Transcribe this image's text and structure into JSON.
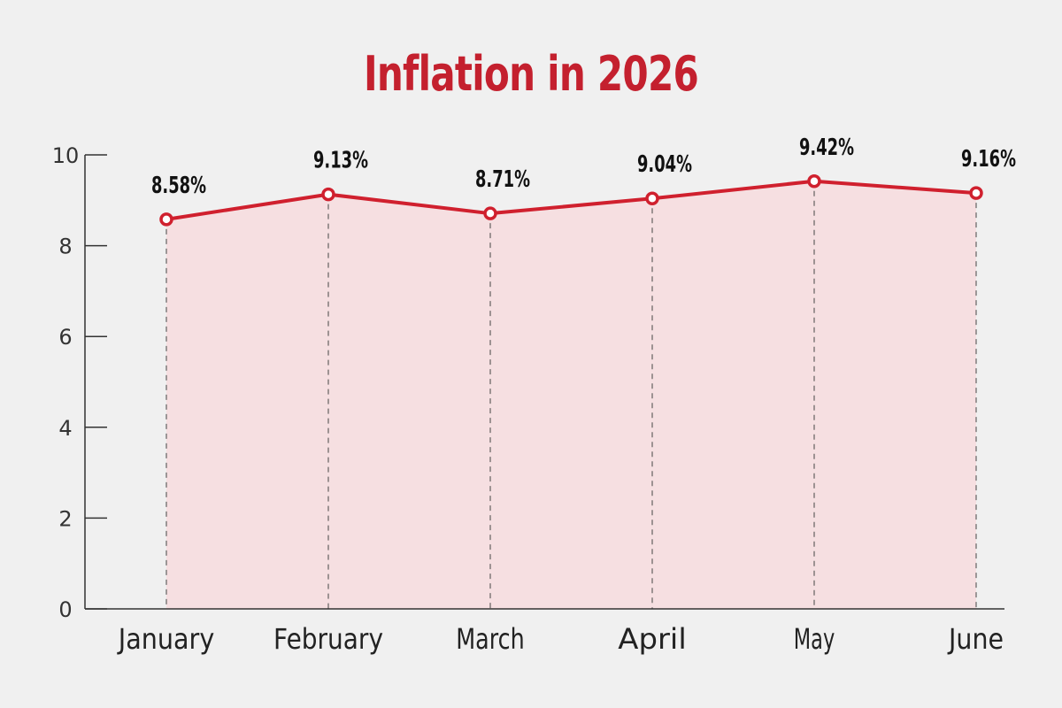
{
  "chart_data": {
    "type": "line",
    "title": "Inflation in 2026",
    "categories": [
      "January",
      "February",
      "March",
      "April",
      "May",
      "June"
    ],
    "values": [
      8.58,
      9.13,
      8.71,
      9.04,
      9.42,
      9.16
    ],
    "data_labels": [
      "8.58%",
      "9.13%",
      "8.71%",
      "9.04%",
      "9.42%",
      "9.16%"
    ],
    "y_ticks": [
      "0",
      "2",
      "4",
      "6",
      "8",
      "10"
    ],
    "ylim": [
      0,
      10
    ],
    "xlabel": "",
    "ylabel": "",
    "grid": false,
    "legend": "none",
    "area_fill": true,
    "colors": {
      "title": "#c4202e",
      "line": "#d0202e",
      "area": "#f6dfe1",
      "axis": "#333333",
      "marker_fill": "#ffffff",
      "guide": "#444444",
      "background": "#f0f0f0"
    }
  }
}
